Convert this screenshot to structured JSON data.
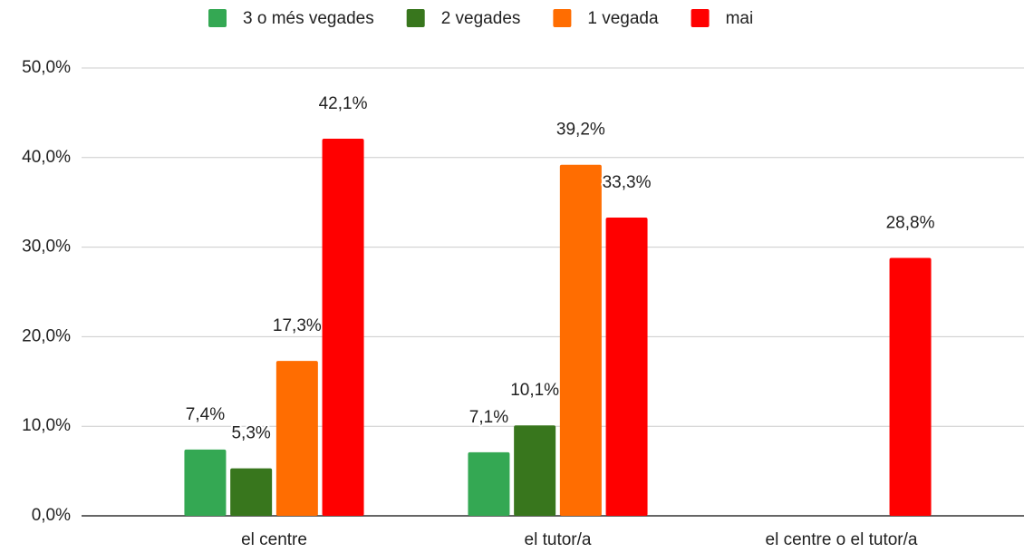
{
  "chart_data": {
    "type": "bar",
    "categories": [
      "el centre",
      "el tutor/a",
      "el centre o el tutor/a"
    ],
    "series": [
      {
        "name": "3 o més vegades",
        "color": "#34a853",
        "values": [
          7.4,
          7.1,
          null
        ],
        "value_labels": [
          "7,4%",
          "7,1%",
          null
        ]
      },
      {
        "name": "2 vegades",
        "color": "#38761d",
        "values": [
          5.3,
          10.1,
          null
        ],
        "value_labels": [
          "5,3%",
          "10,1%",
          null
        ]
      },
      {
        "name": "1 vegada",
        "color": "#ff6d01",
        "values": [
          17.3,
          39.2,
          null
        ],
        "value_labels": [
          "17,3%",
          "39,2%",
          null
        ]
      },
      {
        "name": "mai",
        "color": "#ff0000",
        "values": [
          42.1,
          33.3,
          28.8
        ],
        "value_labels": [
          "42,1%",
          "33,3%",
          "28,8%"
        ]
      }
    ],
    "ylim": [
      0,
      50
    ],
    "yticks": [
      {
        "value": 0,
        "label": "0,0%"
      },
      {
        "value": 10,
        "label": "10,0%"
      },
      {
        "value": 20,
        "label": "20,0%"
      },
      {
        "value": 30,
        "label": "30,0%"
      },
      {
        "value": 40,
        "label": "40,0%"
      },
      {
        "value": 50,
        "label": "50,0%"
      }
    ],
    "grid": true,
    "legend": "top"
  }
}
